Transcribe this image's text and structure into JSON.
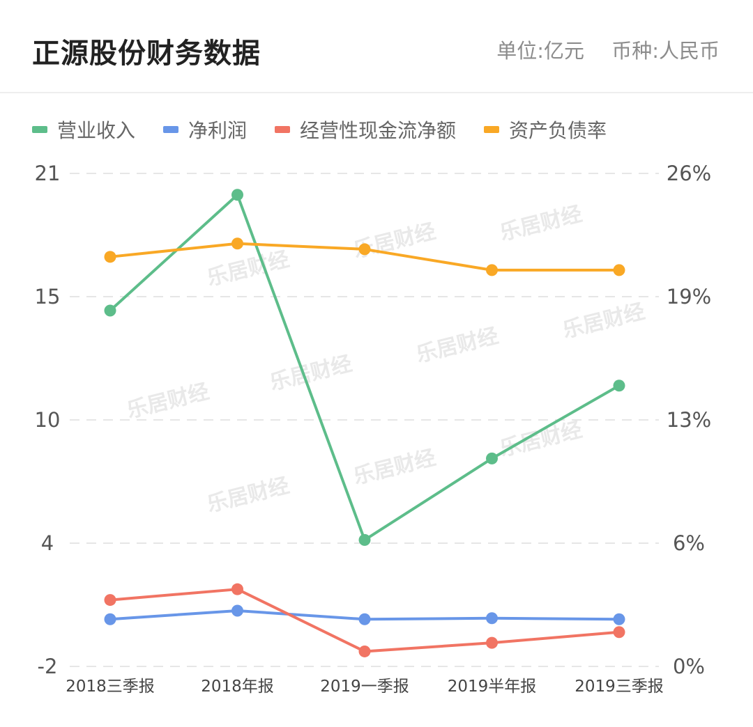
{
  "header": {
    "title": "正源股份财务数据",
    "unit": "单位:亿元",
    "currency": "币种:人民币"
  },
  "watermark": "乐居财经",
  "chart_data": {
    "type": "line",
    "categories": [
      "2018三季报",
      "2018年报",
      "2019一季报",
      "2019半年报",
      "2019三季报"
    ],
    "y_left": {
      "ticks": [
        "21",
        "15",
        "10",
        "4",
        "-2"
      ],
      "range": [
        -2,
        21
      ]
    },
    "y_right": {
      "ticks": [
        "26%",
        "19%",
        "13%",
        "6%",
        "0%"
      ],
      "range": [
        0,
        26
      ]
    },
    "grid": true,
    "legend_position": "top-left",
    "series": [
      {
        "name": "营业收入",
        "axis": "left",
        "color": "#5dbd8a",
        "values": [
          14.6,
          20.0,
          3.9,
          7.7,
          11.1
        ]
      },
      {
        "name": "净利润",
        "axis": "left",
        "color": "#6896e8",
        "values": [
          0.2,
          0.6,
          0.2,
          0.25,
          0.2
        ]
      },
      {
        "name": "经营性现金流净额",
        "axis": "left",
        "color": "#f17463",
        "values": [
          1.1,
          1.6,
          -1.3,
          -0.9,
          -0.4
        ]
      },
      {
        "name": "资产负债率",
        "axis": "right",
        "color": "#f9a825",
        "unit": "%",
        "values": [
          21.6,
          22.3,
          22.0,
          20.9,
          20.9
        ]
      }
    ]
  }
}
